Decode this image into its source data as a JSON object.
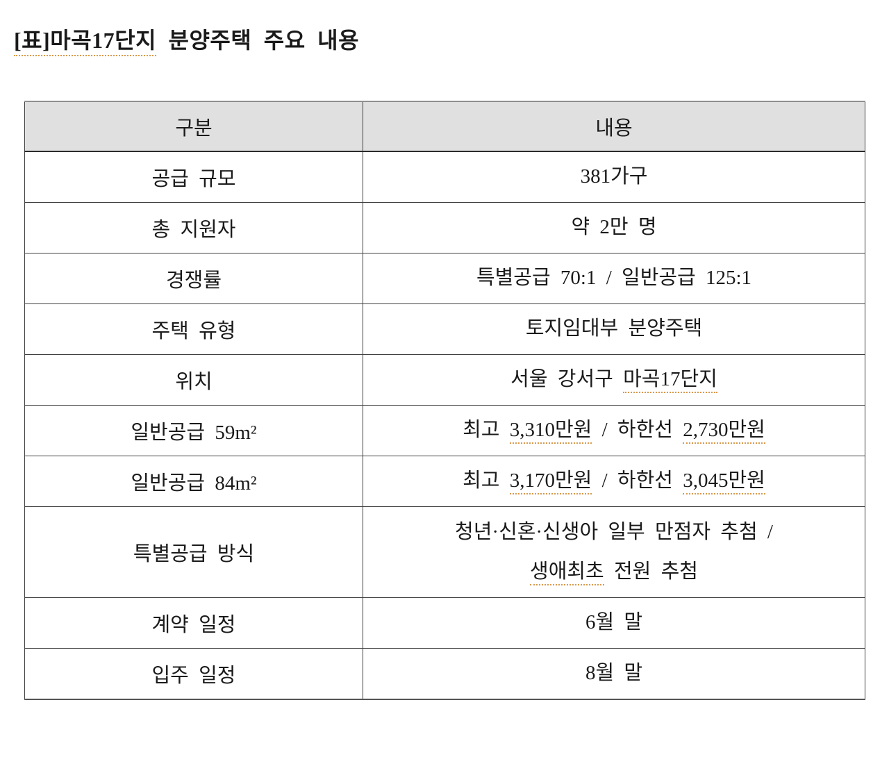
{
  "title": {
    "underlined_part": "[표]마곡17단지",
    "rest": " 분양주택 주요 내용"
  },
  "colors": {
    "header_bg": "#e0e0e0",
    "border": "#3f3f3f",
    "spellcheck_underline": "#d9984a",
    "text": "#1a1a1a"
  },
  "table": {
    "headers": [
      "구분",
      "내용"
    ],
    "rows": [
      {
        "label": "공급 규모",
        "value_lines": [
          [
            {
              "text": "381가구",
              "underline": false
            }
          ]
        ]
      },
      {
        "label": "총 지원자",
        "value_lines": [
          [
            {
              "text": "약 2만 명",
              "underline": false
            }
          ]
        ]
      },
      {
        "label": "경쟁률",
        "value_lines": [
          [
            {
              "text": "특별공급 70:1 / 일반공급 125:1",
              "underline": false
            }
          ]
        ]
      },
      {
        "label": "주택 유형",
        "value_lines": [
          [
            {
              "text": "토지임대부 분양주택",
              "underline": false
            }
          ]
        ]
      },
      {
        "label": "위치",
        "value_lines": [
          [
            {
              "text": "서울 강서구 ",
              "underline": false
            },
            {
              "text": "마곡17단지",
              "underline": true
            }
          ]
        ]
      },
      {
        "label": "일반공급 59m²",
        "value_lines": [
          [
            {
              "text": "최고 ",
              "underline": false
            },
            {
              "text": "3,310만원",
              "underline": true
            },
            {
              "text": " / 하한선 ",
              "underline": false
            },
            {
              "text": "2,730만원",
              "underline": true
            }
          ]
        ]
      },
      {
        "label": "일반공급 84m²",
        "value_lines": [
          [
            {
              "text": "최고 ",
              "underline": false
            },
            {
              "text": "3,170만원",
              "underline": true
            },
            {
              "text": " / 하한선 ",
              "underline": false
            },
            {
              "text": "3,045만원",
              "underline": true
            }
          ]
        ]
      },
      {
        "label": "특별공급 방식",
        "value_lines": [
          [
            {
              "text": "청년·신혼·신생아 일부 만점자 추첨 /",
              "underline": false
            }
          ],
          [
            {
              "text": "생애최초",
              "underline": true
            },
            {
              "text": " 전원 추첨",
              "underline": false
            }
          ]
        ]
      },
      {
        "label": "계약 일정",
        "value_lines": [
          [
            {
              "text": "6월 말",
              "underline": false
            }
          ]
        ]
      },
      {
        "label": "입주 일정",
        "value_lines": [
          [
            {
              "text": "8월 말",
              "underline": false
            }
          ]
        ]
      }
    ]
  }
}
